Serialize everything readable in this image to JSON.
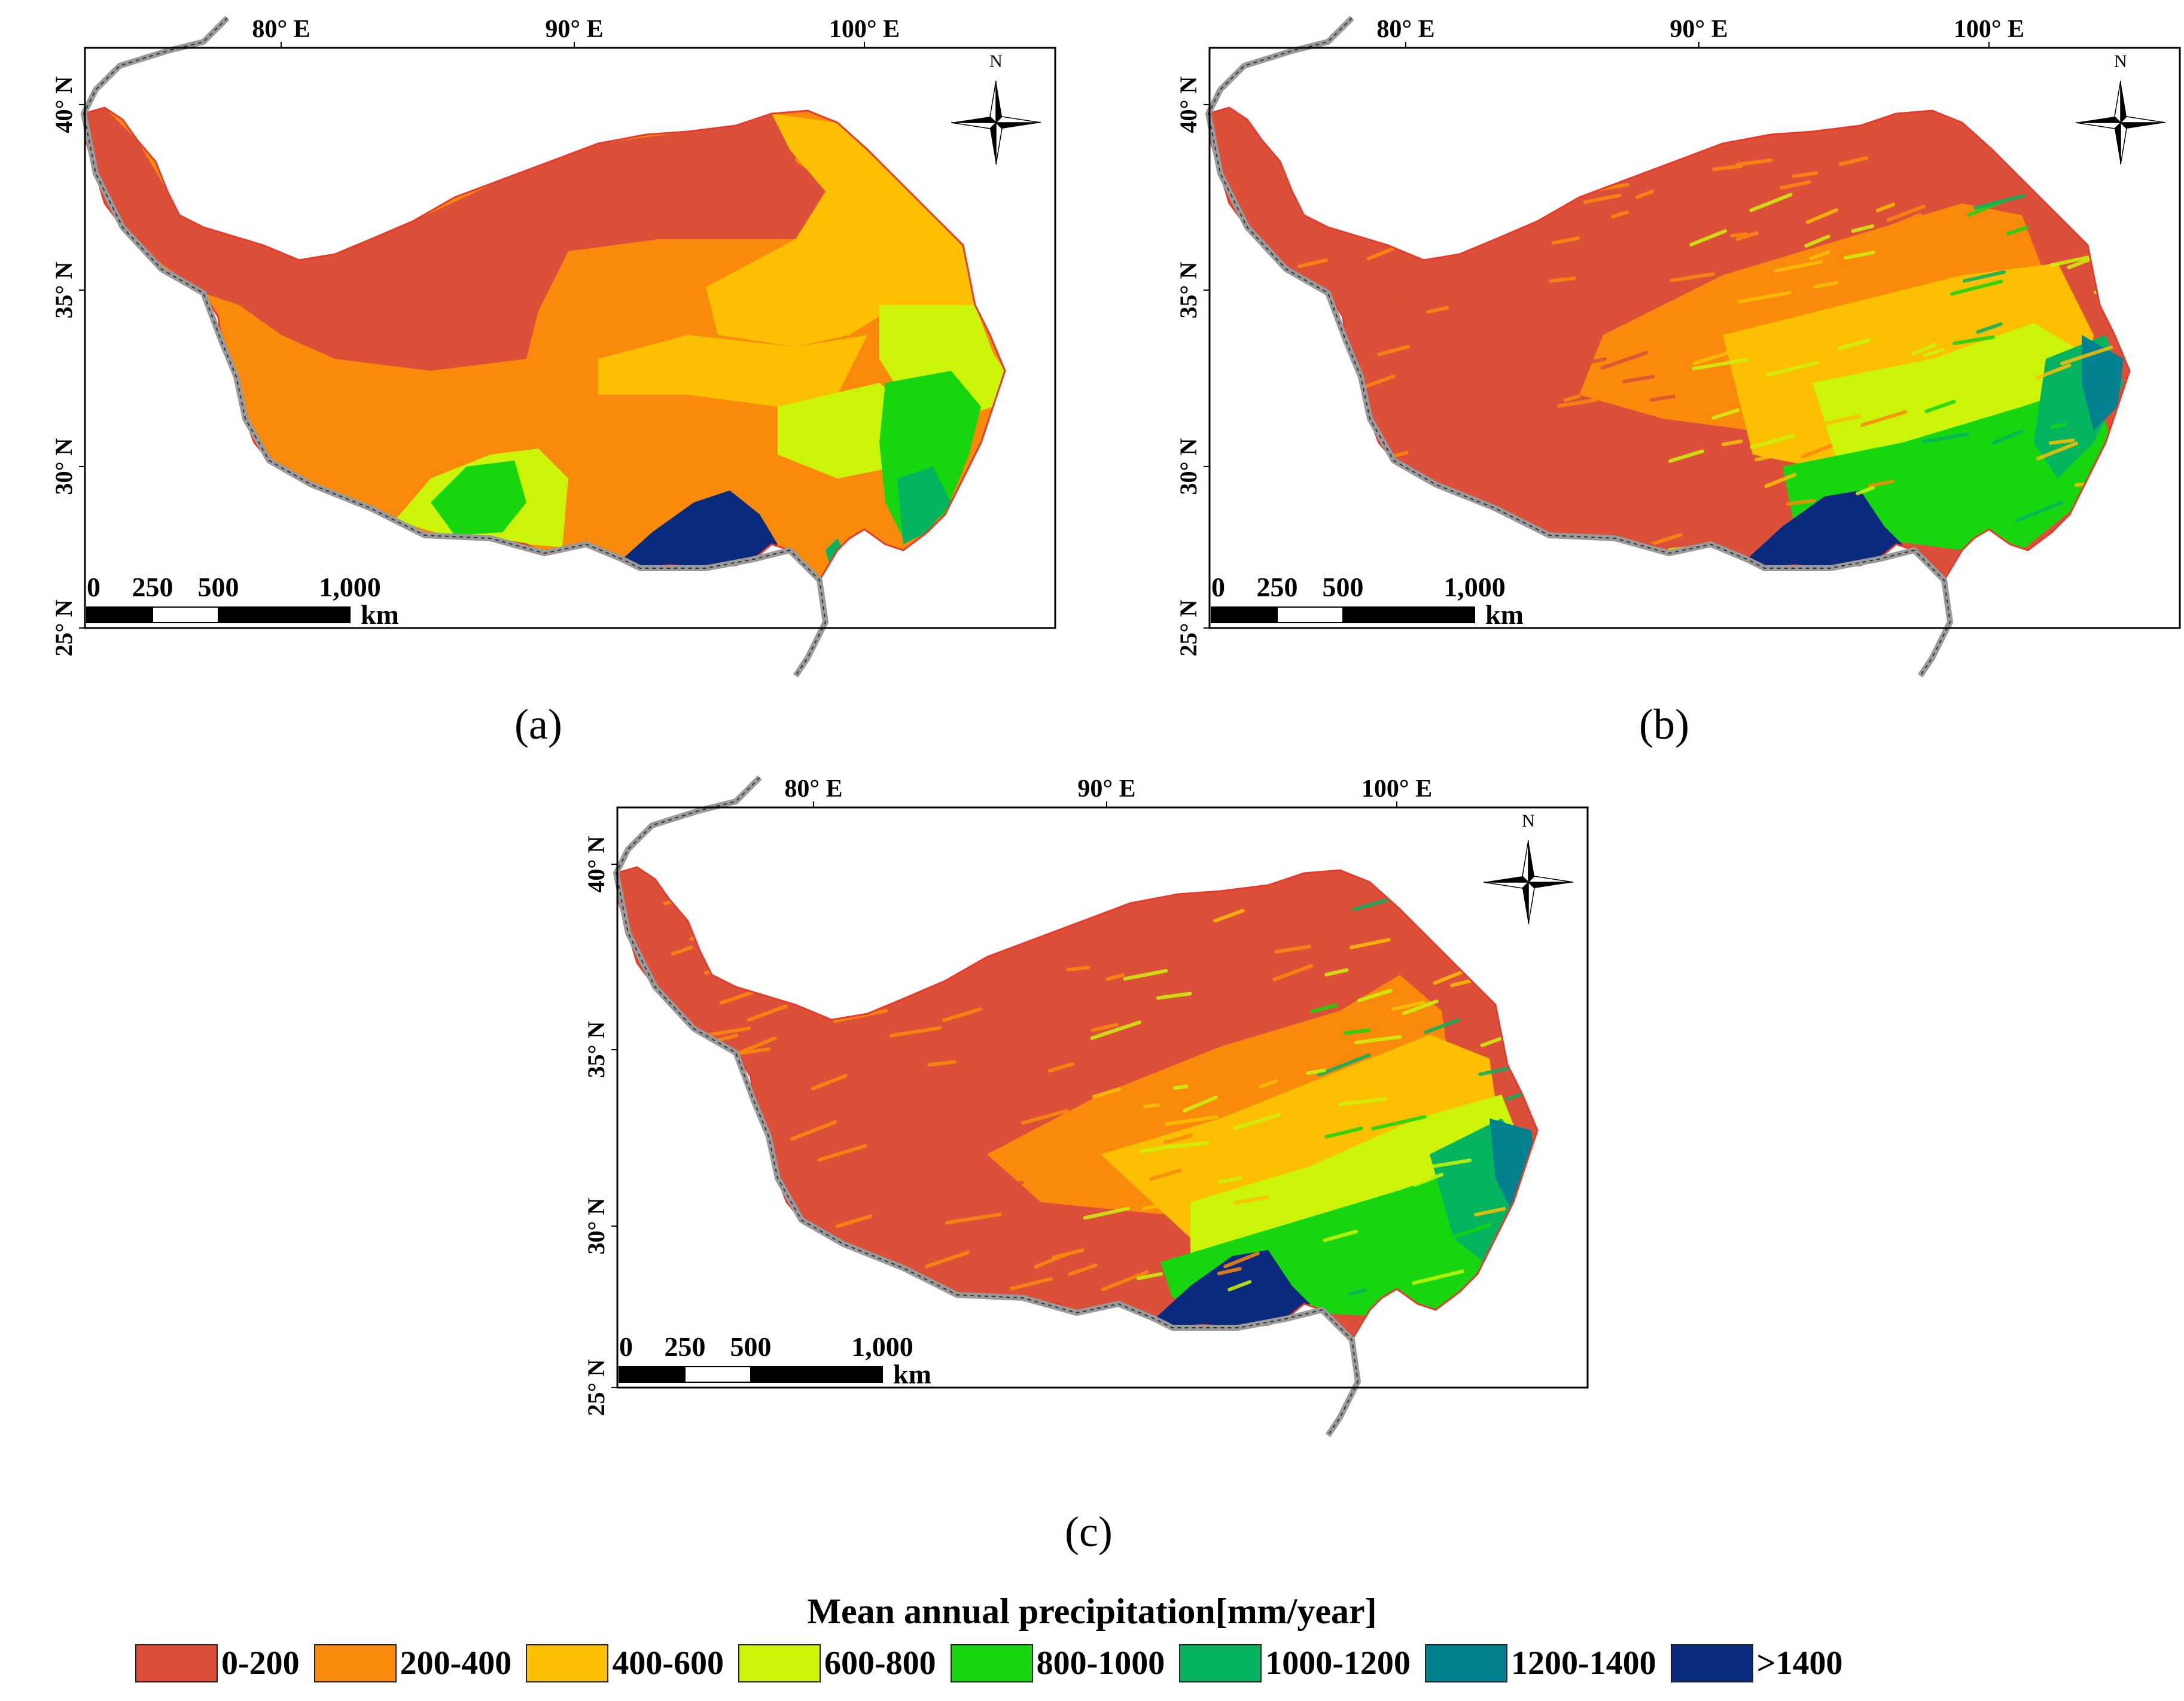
{
  "panels": [
    {
      "id": "a",
      "caption": "(a)",
      "variant": 0
    },
    {
      "id": "b",
      "caption": "(b)",
      "variant": 1
    },
    {
      "id": "c",
      "caption": "(c)",
      "variant": 2
    }
  ],
  "axes": {
    "lon_ticks": [
      "80° E",
      "90° E",
      "100° E"
    ],
    "lat_ticks": [
      "40° N",
      "35° N",
      "30° N",
      "25° N"
    ]
  },
  "scale_bar": {
    "labels": [
      "0",
      "250",
      "500",
      "1,000"
    ],
    "unit": "km"
  },
  "north_arrow": {
    "label": "N"
  },
  "legend": {
    "title": "Mean annual precipitation[mm/year]",
    "classes": [
      {
        "label": "0-200",
        "color": "#DC5039"
      },
      {
        "label": "200-400",
        "color": "#F98A0C"
      },
      {
        "label": "400-600",
        "color": "#FCBF02"
      },
      {
        "label": "600-800",
        "color": "#CCF409"
      },
      {
        "label": "800-1000",
        "color": "#17D60F"
      },
      {
        "label": "1000-1200",
        "color": "#06B35E"
      },
      {
        "label": "1200-1400",
        "color": "#03818F"
      },
      {
        "label": ">1400",
        "color": "#0A2A7E"
      }
    ]
  }
}
